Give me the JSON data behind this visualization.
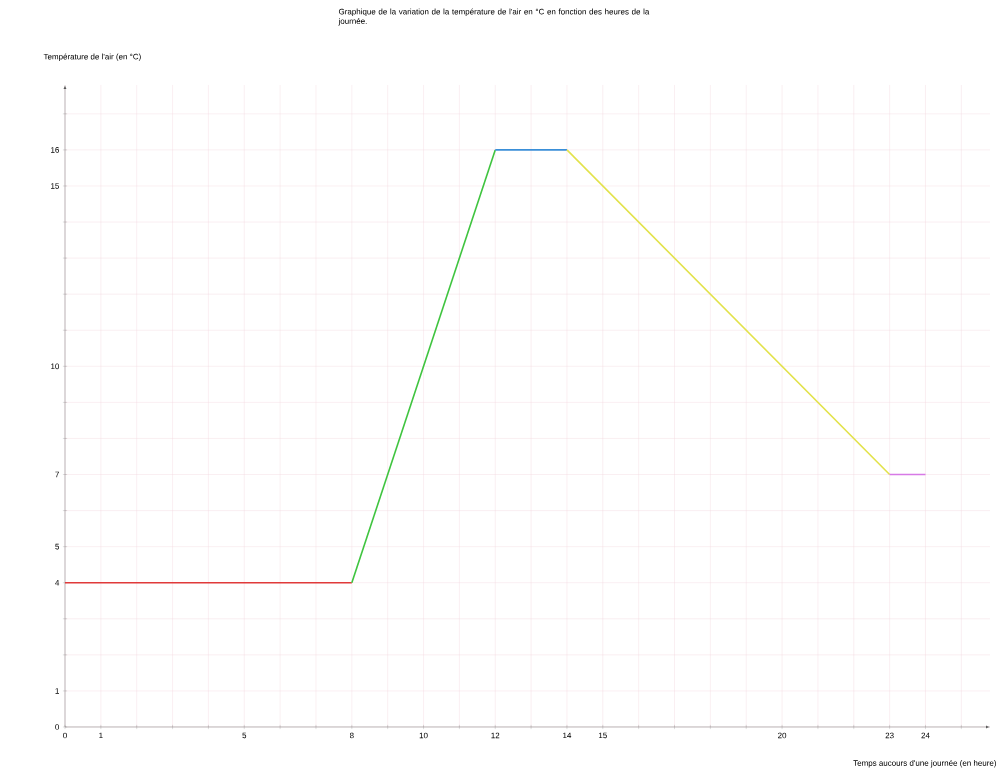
{
  "chart_data": {
    "type": "line",
    "title": "Graphique de la variation de la température de l'air en °C en fonction des heures de la journée.",
    "xlabel": "Temps aucours d'une journée (en heure)",
    "ylabel": "Température de l'air (en °C)",
    "xlim": [
      0,
      25.8
    ],
    "ylim": [
      0,
      17.8
    ],
    "xticks": [
      0,
      1,
      {
        "value": 2,
        "label": null
      },
      {
        "value": 3,
        "label": null
      },
      {
        "value": 4,
        "label": null
      },
      5,
      {
        "value": 6,
        "label": null
      },
      {
        "value": 7,
        "label": null
      },
      8,
      {
        "value": 9,
        "label": null
      },
      10,
      {
        "value": 11,
        "label": null
      },
      12,
      {
        "value": 13,
        "label": null
      },
      14,
      15,
      {
        "value": 16,
        "label": null
      },
      {
        "value": 17,
        "label": null
      },
      {
        "value": 18,
        "label": null
      },
      {
        "value": 19,
        "label": null
      },
      20,
      {
        "value": 21,
        "label": null
      },
      {
        "value": 22,
        "label": null
      },
      23,
      24,
      {
        "value": 25,
        "label": null
      }
    ],
    "yticks": [
      0,
      1,
      {
        "value": 2,
        "label": null
      },
      {
        "value": 3,
        "label": null
      },
      4,
      5,
      {
        "value": 6,
        "label": null
      },
      7,
      {
        "value": 8,
        "label": null
      },
      {
        "value": 9,
        "label": null
      },
      10,
      {
        "value": 11,
        "label": null
      },
      {
        "value": 12,
        "label": null
      },
      {
        "value": 13,
        "label": null
      },
      {
        "value": 14,
        "label": null
      },
      15,
      16,
      {
        "value": 17,
        "label": null
      }
    ],
    "grid": true,
    "marker": "none",
    "series": [
      {
        "color": "#e03a3a",
        "x": [
          0,
          8
        ],
        "values": [
          4,
          4
        ]
      },
      {
        "color": "#3fc43f",
        "x": [
          8,
          12
        ],
        "values": [
          4,
          16
        ]
      },
      {
        "color": "#3a8fd8",
        "x": [
          12,
          14
        ],
        "values": [
          16,
          16
        ]
      },
      {
        "color": "#e2e24a",
        "x": [
          14,
          23
        ],
        "values": [
          16,
          7
        ]
      },
      {
        "color": "#d77ae6",
        "x": [
          23,
          24
        ],
        "values": [
          7,
          7
        ]
      }
    ]
  }
}
